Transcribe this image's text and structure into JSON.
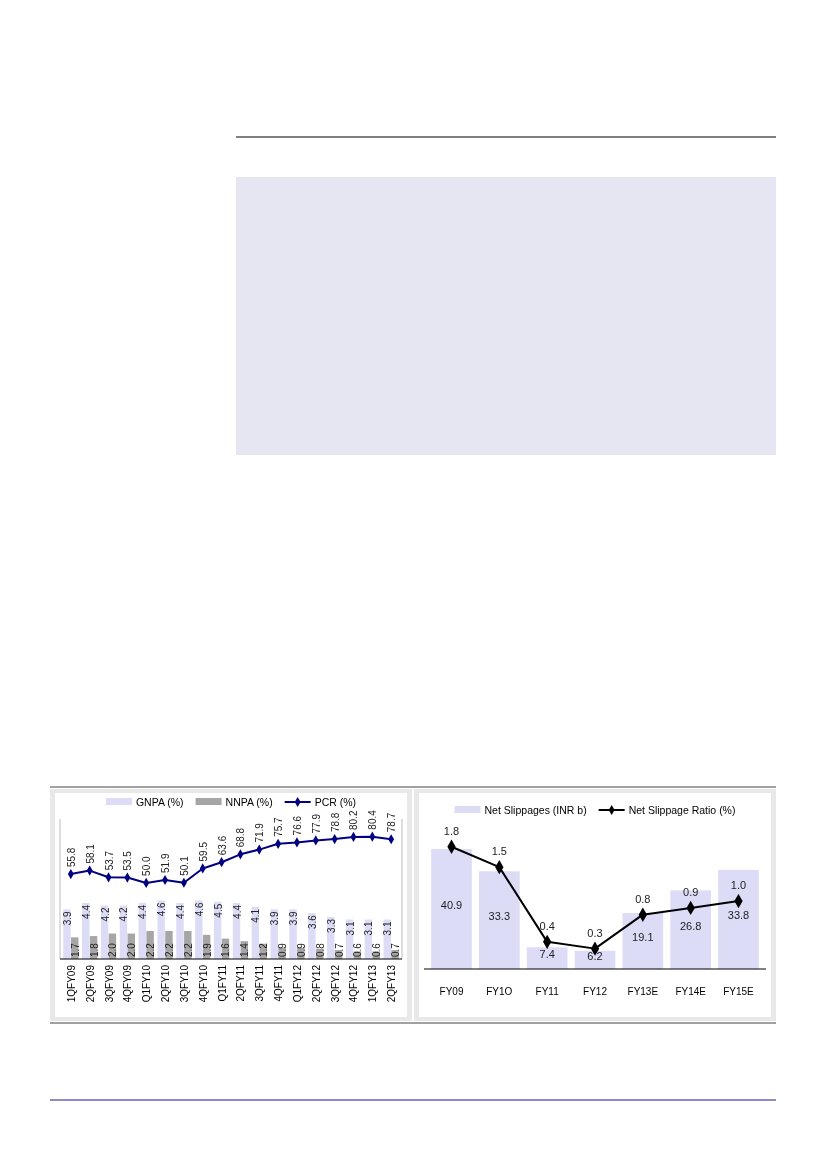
{
  "chart_data": [
    {
      "type": "bar",
      "categories": [
        "1QFY09",
        "2QFY09",
        "3QFY09",
        "4QFY09",
        "Q1FY10",
        "2QFY10",
        "3QFY10",
        "4QFY10",
        "Q1FY11",
        "2QFY11",
        "3QFY11",
        "4QFY11",
        "Q1FY12",
        "2QFY12",
        "3QFY12",
        "4QFY12",
        "1QFY13",
        "2QFY13"
      ],
      "legend": "top",
      "marker": "diamond",
      "tick_labels": "x",
      "ylim": [
        0,
        11
      ],
      "y2lim": [
        0,
        92
      ],
      "series": [
        {
          "name": "GNPA (%)",
          "color": "#dcdcf7",
          "values": [
            3.9,
            4.4,
            4.2,
            4.2,
            4.4,
            4.6,
            4.4,
            4.6,
            4.5,
            4.4,
            4.1,
            3.9,
            3.9,
            3.6,
            3.3,
            3.1,
            3.1,
            3.1
          ],
          "value_labels": [
            "3.9",
            "4.4",
            "4.2",
            "4.2",
            "4.4",
            "4.6",
            "4.4",
            "4.6",
            "4.5",
            "4.4",
            "4.1",
            "3.9",
            "3.9",
            "3.6",
            "3.3",
            "3.1",
            "3.1",
            "3.1"
          ]
        },
        {
          "name": "NNPA (%)",
          "color": "#a6a6a6",
          "values": [
            1.7,
            1.8,
            2.0,
            2.0,
            2.2,
            2.2,
            2.2,
            1.9,
            1.6,
            1.4,
            1.2,
            0.9,
            0.9,
            0.8,
            0.7,
            0.6,
            0.6,
            0.7
          ],
          "value_labels": [
            "1.7",
            "1.8",
            "2.0",
            "2.0",
            "2.2",
            "2.2",
            "2.2",
            "1.9",
            "1.6",
            "1.4",
            "1.2",
            "0.9",
            "0.9",
            "0.8",
            "0.7",
            "0.6",
            "0.6",
            "0.7"
          ]
        },
        {
          "name": "PCR (%)",
          "type": "line",
          "axis": "y2",
          "color": "#000080",
          "values": [
            55.8,
            58.1,
            53.7,
            53.5,
            50.0,
            51.9,
            50.1,
            59.5,
            63.6,
            68.8,
            71.9,
            75.7,
            76.6,
            77.9,
            78.8,
            80.2,
            80.4,
            78.7
          ],
          "value_labels": [
            "55.8",
            "58.1",
            "53.7",
            "53.5",
            "50.0",
            "51.9",
            "50.1",
            "59.5",
            "63.6",
            "68.8",
            "71.9",
            "75.7",
            "76.6",
            "77.9",
            "78.8",
            "80.2",
            "80.4",
            "78.7"
          ]
        }
      ]
    },
    {
      "type": "bar",
      "categories": [
        "FY09",
        "FY1O",
        "FY11",
        "FY12",
        "FY13E",
        "FY14E",
        "FY15E"
      ],
      "legend": "top",
      "marker": "diamond",
      "series": [
        {
          "name": "Net Slippages (INR b)",
          "color": "#dcdcf7",
          "values": [
            40.9,
            33.3,
            7.4,
            6.2,
            19.1,
            26.8,
            33.8
          ],
          "value_labels": [
            "40.9",
            "33.3",
            "7.4",
            "6.2",
            "19.1",
            "26.8",
            "33.8"
          ]
        },
        {
          "name": "Net Slippage Ratio (%)",
          "type": "line",
          "axis": "y2",
          "color": "#000000",
          "values": [
            1.8,
            1.5,
            0.4,
            0.3,
            0.8,
            0.9,
            1.0
          ],
          "value_labels": [
            "1.8",
            "1.5",
            "0.4",
            "0.3",
            "0.8",
            "0.9",
            "1.0"
          ]
        }
      ]
    }
  ]
}
